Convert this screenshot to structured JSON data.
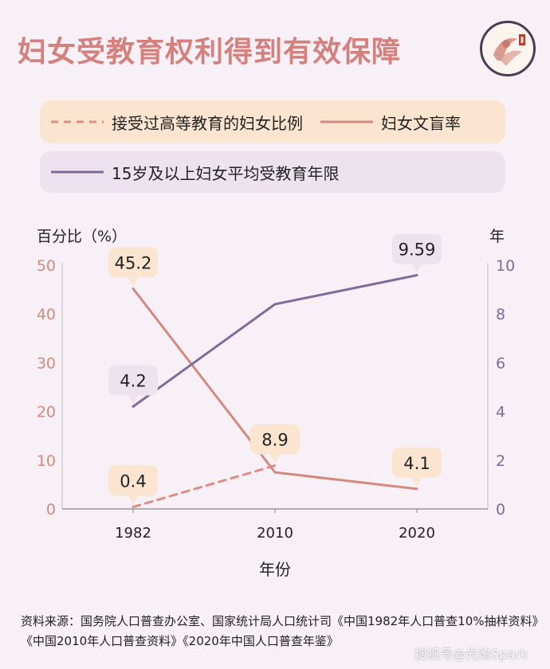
{
  "title": "妇女受教育权利得到有效保障",
  "legend": {
    "items": [
      {
        "label": "接受过高等教育的妇女比例",
        "color": "#dc8e84",
        "style": "dashed"
      },
      {
        "label": "妇女文盲率",
        "color": "#d4897f",
        "style": "solid"
      },
      {
        "label": "15岁及以上妇女平均受教育年限",
        "color": "#7b6c9a",
        "style": "solid"
      }
    ]
  },
  "chart_data": {
    "type": "line",
    "categories": [
      "1982",
      "2010",
      "2020"
    ],
    "xlabel": "年份",
    "y_left": {
      "label": "百分比（%）",
      "range": [
        0,
        50
      ],
      "ticks": [
        "0",
        "10",
        "20",
        "30",
        "40",
        "50"
      ],
      "color": "#d4897f"
    },
    "y_right": {
      "label": "年",
      "range": [
        0,
        10
      ],
      "ticks": [
        "0",
        "2",
        "4",
        "6",
        "8",
        "10"
      ],
      "color": "#7b6c9a"
    },
    "series": [
      {
        "name": "接受过高等教育的妇女比例",
        "axis": "left",
        "values": [
          0.4,
          8.9,
          null
        ],
        "labels": [
          "0.4",
          "8.9",
          null
        ],
        "style": "dashed",
        "color": "#dc8e84"
      },
      {
        "name": "妇女文盲率",
        "axis": "left",
        "values": [
          45.2,
          7.5,
          4.1
        ],
        "labels": [
          "45.2",
          null,
          "4.1"
        ],
        "style": "solid",
        "color": "#d4897f"
      },
      {
        "name": "15岁及以上妇女平均受教育年限",
        "axis": "right",
        "values": [
          4.2,
          8.4,
          9.59
        ],
        "labels": [
          "4.2",
          null,
          "9.59"
        ],
        "style": "solid",
        "color": "#7b6c9a"
      }
    ],
    "grid": false,
    "legend_position": "top"
  },
  "source": "资料来源：国务院人口普查办公室、国家统计局人口统计司《中国1982年人口普查10%抽样资料》《中国2010年人口普查资料》《2020年中国人口普查年鉴》",
  "watermark": "搜狐号@光焰Spark"
}
